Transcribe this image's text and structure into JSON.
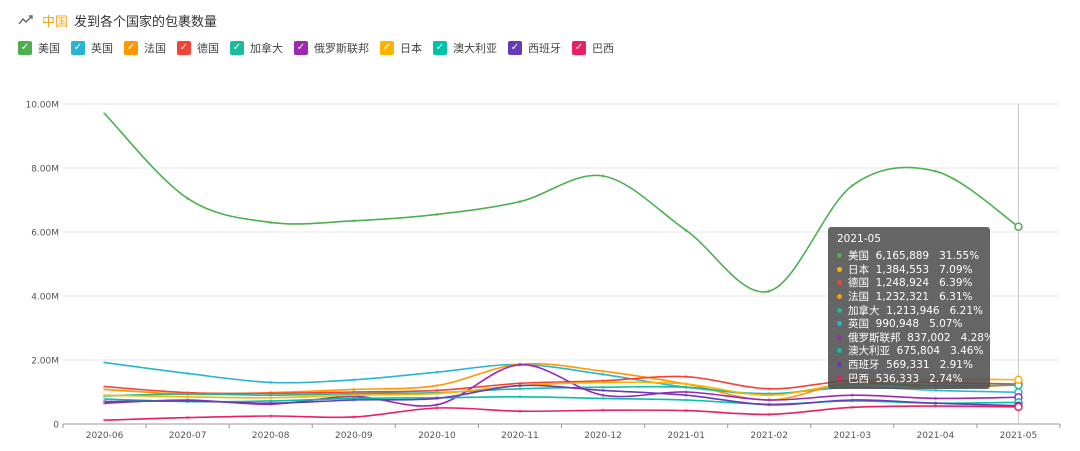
{
  "header": {
    "country": "中国",
    "title": "发到各个国家的包裹数量",
    "icon": "trend-line-icon"
  },
  "chart_data": {
    "type": "line",
    "title": "中国 发到各个国家的包裹数量",
    "x": [
      "2020-06",
      "2020-07",
      "2020-08",
      "2020-09",
      "2020-10",
      "2020-11",
      "2020-12",
      "2021-01",
      "2021-02",
      "2021-03",
      "2021-04",
      "2021-05"
    ],
    "ylim": [
      0,
      10000000
    ],
    "yticks": [
      0,
      2000000,
      4000000,
      6000000,
      8000000,
      10000000
    ],
    "ytick_labels": [
      "0",
      "2.00M",
      "4.00M",
      "6.00M",
      "8.00M",
      "10.00M"
    ],
    "grid": true,
    "legend_position": "top-left",
    "series": [
      {
        "name": "美国",
        "color": "#4caf50",
        "values": [
          9700000,
          7050000,
          6300000,
          6350000,
          6550000,
          6950000,
          7750000,
          6050000,
          4150000,
          7450000,
          7900000,
          6165889
        ]
      },
      {
        "name": "英国",
        "color": "#26b5d3",
        "values": [
          1920000,
          1580000,
          1300000,
          1380000,
          1620000,
          1860000,
          1550000,
          1150000,
          950000,
          1150000,
          1050000,
          990948
        ]
      },
      {
        "name": "法国",
        "color": "#ff9800",
        "values": [
          1080000,
          930000,
          980000,
          1080000,
          1200000,
          1870000,
          1650000,
          1250000,
          750000,
          1300000,
          1120000,
          1232321
        ]
      },
      {
        "name": "德国",
        "color": "#f44336",
        "values": [
          1170000,
          980000,
          960000,
          1000000,
          1050000,
          1270000,
          1350000,
          1480000,
          1100000,
          1360000,
          1300000,
          1248924
        ]
      },
      {
        "name": "加拿大",
        "color": "#1abc9c",
        "values": [
          880000,
          940000,
          900000,
          950000,
          980000,
          1100000,
          1150000,
          1150000,
          920000,
          1250000,
          1200000,
          1213946
        ]
      },
      {
        "name": "俄罗斯联邦",
        "color": "#9c27b0",
        "values": [
          650000,
          750000,
          620000,
          860000,
          600000,
          1850000,
          900000,
          1000000,
          750000,
          900000,
          800000,
          837002
        ]
      },
      {
        "name": "日本",
        "color": "#ffb300",
        "values": [
          900000,
          850000,
          820000,
          900000,
          950000,
          1200000,
          1300000,
          1250000,
          900000,
          1300000,
          1400000,
          1384553
        ]
      },
      {
        "name": "澳大利亚",
        "color": "#00c3a5",
        "values": [
          780000,
          700000,
          720000,
          800000,
          820000,
          850000,
          800000,
          750000,
          620000,
          720000,
          650000,
          675804
        ]
      },
      {
        "name": "西班牙",
        "color": "#673ab7",
        "values": [
          700000,
          720000,
          650000,
          750000,
          800000,
          1200000,
          1050000,
          900000,
          600000,
          750000,
          650000,
          569331
        ]
      },
      {
        "name": "巴西",
        "color": "#e91e63",
        "values": [
          120000,
          200000,
          250000,
          220000,
          500000,
          400000,
          430000,
          420000,
          300000,
          520000,
          560000,
          536333
        ]
      }
    ]
  },
  "tooltip": {
    "title": "2021-05",
    "rows": [
      {
        "name": "美国",
        "value": "6,165,889",
        "pct": "31.55%",
        "color": "#4caf50"
      },
      {
        "name": "日本",
        "value": "1,384,553",
        "pct": "7.09%",
        "color": "#ffb300"
      },
      {
        "name": "德国",
        "value": "1,248,924",
        "pct": "6.39%",
        "color": "#f44336"
      },
      {
        "name": "法国",
        "value": "1,232,321",
        "pct": "6.31%",
        "color": "#ff9800"
      },
      {
        "name": "加拿大",
        "value": "1,213,946",
        "pct": "6.21%",
        "color": "#1abc9c"
      },
      {
        "name": "英国",
        "value": "990,948",
        "pct": "5.07%",
        "color": "#26b5d3"
      },
      {
        "name": "俄罗斯联邦",
        "value": "837,002",
        "pct": "4.28%",
        "color": "#9c27b0"
      },
      {
        "name": "澳大利亚",
        "value": "675,804",
        "pct": "3.46%",
        "color": "#00c3a5"
      },
      {
        "name": "西班牙",
        "value": "569,331",
        "pct": "2.91%",
        "color": "#673ab7"
      },
      {
        "name": "巴西",
        "value": "536,333",
        "pct": "2.74%",
        "color": "#e91e63"
      }
    ]
  }
}
